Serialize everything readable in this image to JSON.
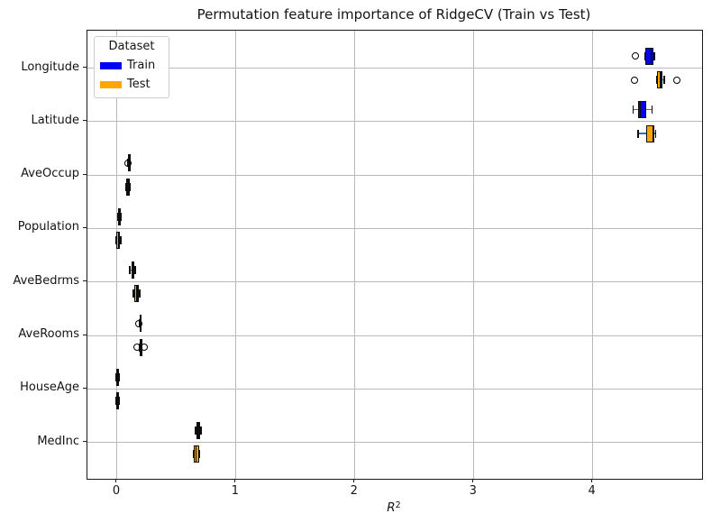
{
  "title": "Permutation feature importance of RidgeCV (Train vs Test)",
  "chart_data": {
    "type": "boxplot",
    "orientation": "horizontal",
    "title": "Permutation feature importance of RidgeCV (Train vs Test)",
    "xlabel": "R^2",
    "xlabel_var": "R",
    "xlabel_exp": "2",
    "xlim": [
      -0.25,
      4.92
    ],
    "x_ticks": [
      0,
      1,
      2,
      3,
      4
    ],
    "grid": true,
    "grid_color": "#b9b9b9",
    "whisker_color": "#1f77b4",
    "categories": [
      "Longitude",
      "Latitude",
      "AveOccup",
      "Population",
      "AveBedrms",
      "AveRooms",
      "HouseAge",
      "MedInc"
    ],
    "legend": {
      "title": "Dataset",
      "position": "upper-left",
      "entries": [
        {
          "label": "Train",
          "color": "#0202f5"
        },
        {
          "label": "Test",
          "color": "#ffa500"
        }
      ]
    },
    "series": [
      {
        "name": "Train",
        "color": "#0202f5",
        "boxes": [
          {
            "category": "Longitude",
            "whislo": 4.44,
            "q1": 4.44,
            "med": 4.49,
            "q3": 4.51,
            "whishi": 4.52,
            "fliers": [
              4.36
            ]
          },
          {
            "category": "Latitude",
            "whislo": 4.34,
            "q1": 4.38,
            "med": 4.4,
            "q3": 4.45,
            "whishi": 4.5,
            "fliers": []
          },
          {
            "category": "AveOccup",
            "whislo": 0.09,
            "q1": 0.093,
            "med": 0.098,
            "q3": 0.104,
            "whishi": 0.108,
            "fliers": [
              0.088
            ]
          },
          {
            "category": "Population",
            "whislo": 0.004,
            "q1": 0.009,
            "med": 0.02,
            "q3": 0.032,
            "whishi": 0.036,
            "fliers": []
          },
          {
            "category": "AveBedrms",
            "whislo": 0.108,
            "q1": 0.118,
            "med": 0.132,
            "q3": 0.143,
            "whishi": 0.153,
            "fliers": []
          },
          {
            "category": "AveRooms",
            "whislo": 0.186,
            "q1": 0.189,
            "med": 0.193,
            "q3": 0.198,
            "whishi": 0.202,
            "fliers": [
              0.181
            ]
          },
          {
            "category": "HouseAge",
            "whislo": -0.01,
            "q1": -0.005,
            "med": 0.002,
            "q3": 0.01,
            "whishi": 0.014,
            "fliers": []
          },
          {
            "category": "MedInc",
            "whislo": 0.66,
            "q1": 0.665,
            "med": 0.682,
            "q3": 0.7,
            "whishi": 0.705,
            "fliers": []
          }
        ]
      },
      {
        "name": "Test",
        "color": "#ffa500",
        "boxes": [
          {
            "category": "Longitude",
            "whislo": 4.54,
            "q1": 4.54,
            "med": 4.57,
            "q3": 4.59,
            "whishi": 4.6,
            "fliers": [
              4.35,
              4.71
            ]
          },
          {
            "category": "Latitude",
            "whislo": 4.38,
            "q1": 4.45,
            "med": 4.51,
            "q3": 4.52,
            "whishi": 4.53,
            "fliers": []
          },
          {
            "category": "AveOccup",
            "whislo": 0.075,
            "q1": 0.079,
            "med": 0.092,
            "q3": 0.104,
            "whishi": 0.107,
            "fliers": []
          },
          {
            "category": "Population",
            "whislo": -0.008,
            "q1": -0.004,
            "med": 0.01,
            "q3": 0.026,
            "whishi": 0.03,
            "fliers": []
          },
          {
            "category": "AveBedrms",
            "whislo": 0.138,
            "q1": 0.146,
            "med": 0.167,
            "q3": 0.18,
            "whishi": 0.188,
            "fliers": []
          },
          {
            "category": "AveRooms",
            "whislo": 0.19,
            "q1": 0.193,
            "med": 0.199,
            "q3": 0.205,
            "whishi": 0.209,
            "fliers": [
              0.164,
              0.227
            ]
          },
          {
            "category": "HouseAge",
            "whislo": -0.012,
            "q1": -0.006,
            "med": 0.002,
            "q3": 0.01,
            "whishi": 0.015,
            "fliers": []
          },
          {
            "category": "MedInc",
            "whislo": 0.64,
            "q1": 0.645,
            "med": 0.664,
            "q3": 0.688,
            "whishi": 0.693,
            "fliers": []
          }
        ]
      }
    ]
  }
}
